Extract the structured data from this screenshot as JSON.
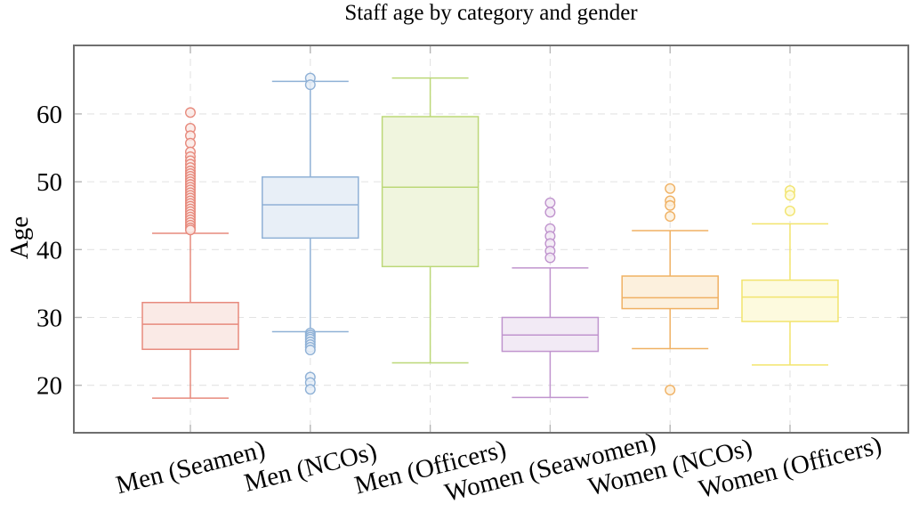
{
  "title": "Staff age by category and gender",
  "chart_data": {
    "type": "boxplot",
    "title": "Staff age by category and gender",
    "xlabel": "",
    "ylabel": "Age",
    "ylim": [
      13,
      70.1
    ],
    "yticks": [
      20,
      30,
      40,
      50,
      60
    ],
    "grid": "dashed light-gray horizontal lines at y ticks and vertical lines at category centers",
    "legend_position": "none",
    "x_tick_label_rotation_deg": -14,
    "categories": [
      "Men (Seamen)",
      "Men (NCOs)",
      "Men (Officers)",
      "Women (Seawomen)",
      "Women (NCOs)",
      "Women (Officers)"
    ],
    "series": [
      {
        "name": "Men (Seamen)",
        "stroke": "#e78a7d",
        "fill": "#faeae6",
        "whisker_low": 18.1,
        "q1": 25.3,
        "median": 29.0,
        "q3": 32.2,
        "whisker_high": 42.4,
        "outliers": [
          60.2,
          57.9,
          56.8,
          55.7,
          54.4,
          53.7,
          53.1,
          52.6,
          52.1,
          51.6,
          51.2,
          50.8,
          50.4,
          50.0,
          49.6,
          49.2,
          48.8,
          48.4,
          48.0,
          47.6,
          47.2,
          46.8,
          46.4,
          46.0,
          45.6,
          45.2,
          44.8,
          44.4,
          44.0,
          43.6,
          43.2,
          42.9
        ]
      },
      {
        "name": "Men (NCOs)",
        "stroke": "#8fb1d6",
        "fill": "#e8eff7",
        "whisker_low": 27.9,
        "q1": 41.7,
        "median": 46.6,
        "q3": 50.7,
        "whisker_high": 64.8,
        "outliers": [
          65.3,
          64.3,
          27.7,
          27.4,
          27.1,
          26.8,
          26.4,
          26.0,
          25.6,
          25.2,
          21.2,
          20.4,
          19.4
        ]
      },
      {
        "name": "Men (Officers)",
        "stroke": "#bcd878",
        "fill": "#f0f5de",
        "whisker_low": 23.3,
        "q1": 37.5,
        "median": 49.2,
        "q3": 59.6,
        "whisker_high": 65.3,
        "outliers": []
      },
      {
        "name": "Women (Seawomen)",
        "stroke": "#c094ce",
        "fill": "#f2eaf5",
        "whisker_low": 18.2,
        "q1": 25.0,
        "median": 27.4,
        "q3": 30.0,
        "whisker_high": 37.3,
        "outliers": [
          46.9,
          45.5,
          43.1,
          42.0,
          40.9,
          39.8,
          38.8
        ]
      },
      {
        "name": "Women (NCOs)",
        "stroke": "#f0b163",
        "fill": "#fcf0dd",
        "whisker_low": 25.4,
        "q1": 31.3,
        "median": 32.9,
        "q3": 36.1,
        "whisker_high": 42.8,
        "outliers": [
          49.0,
          47.2,
          46.5,
          44.9,
          19.3
        ]
      },
      {
        "name": "Women (Officers)",
        "stroke": "#f2e46d",
        "fill": "#fdfade",
        "whisker_low": 23.0,
        "q1": 29.4,
        "median": 33.0,
        "q3": 35.5,
        "whisker_high": 43.8,
        "outliers": [
          48.7,
          48.0,
          45.7
        ]
      }
    ]
  },
  "style_colors": {
    "axis_border": "#6f6f6f",
    "grid_line": "#e3e3e3",
    "tick_mark": "#b5b5b5",
    "text": "#000000",
    "background": "#ffffff"
  }
}
